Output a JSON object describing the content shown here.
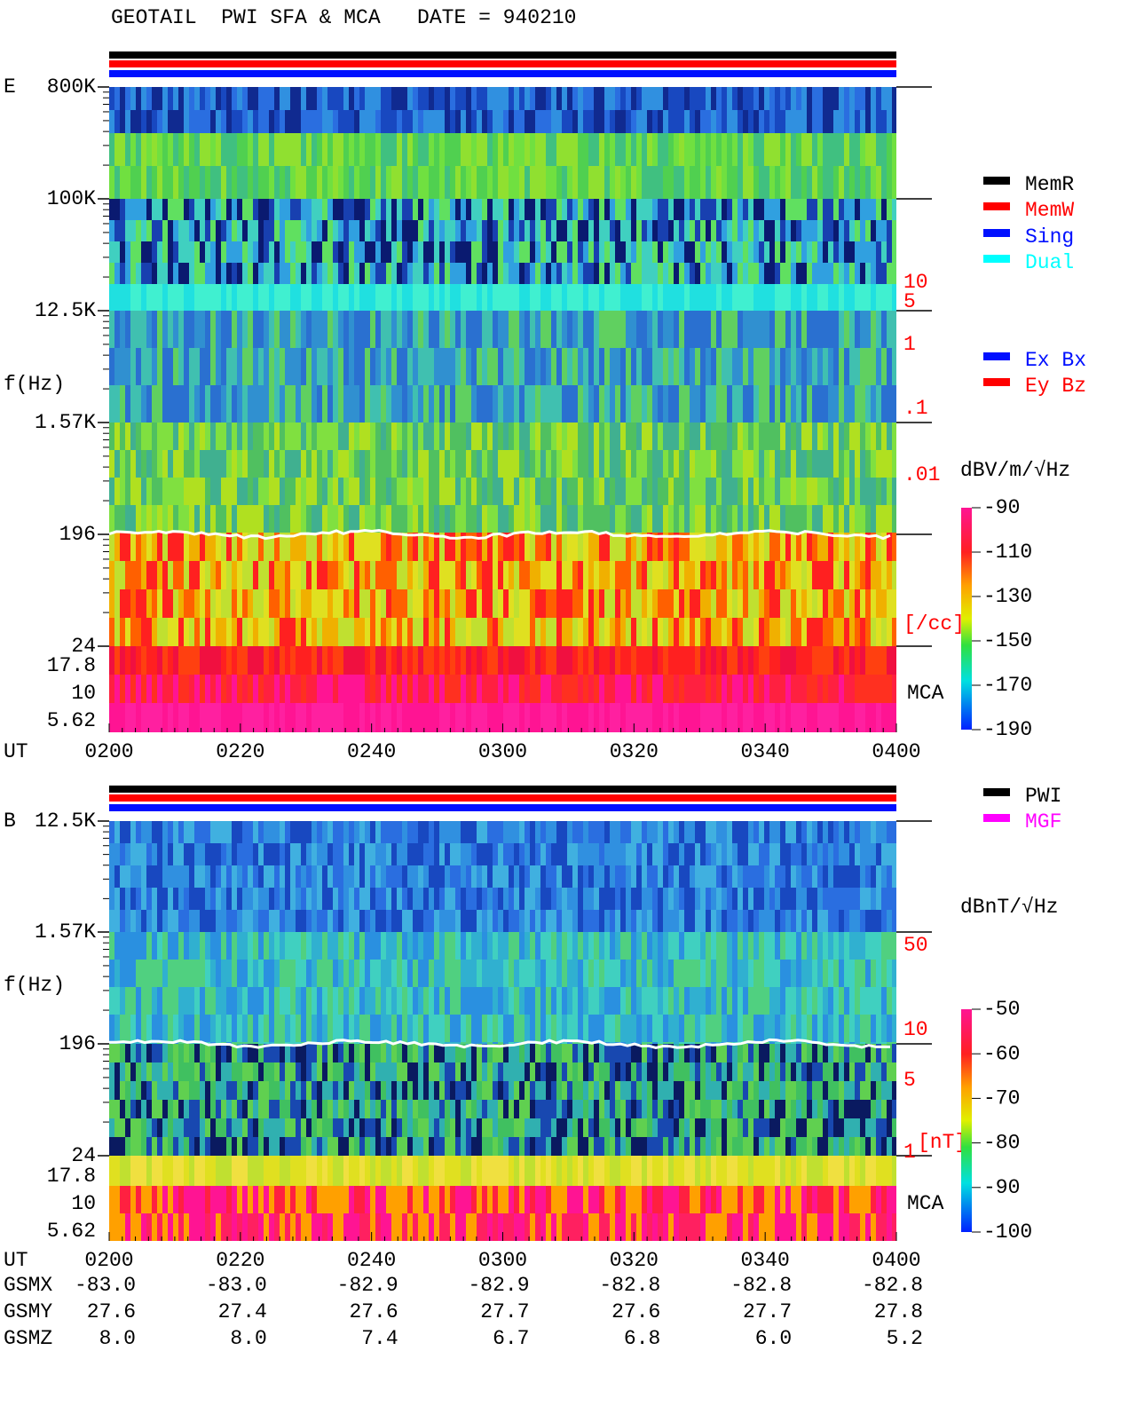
{
  "title": "GEOTAIL  PWI SFA & MCA   DATE = 940210",
  "panel_e": {
    "label": "E",
    "y_axis_label": "f(Hz)",
    "freq_labels": [
      "800K",
      "100K",
      "12.5K",
      "1.57K",
      "196",
      "24",
      "17.8",
      "10",
      "5.62"
    ],
    "density_labels": [
      "10",
      "5",
      "1",
      ".1",
      ".01",
      "[/cc]"
    ],
    "mca_label": "MCA",
    "ut_label": "UT",
    "time_labels": [
      "0200",
      "0220",
      "0240",
      "0300",
      "0320",
      "0340",
      "0400"
    ],
    "legend": [
      "MemR",
      "MemW",
      "Sing",
      "Dual",
      "Ex Bx",
      "Ey Bz"
    ],
    "unit": "dBV/m/√Hz",
    "colorbar_labels": [
      "-90",
      "-110",
      "-130",
      "-150",
      "-170",
      "-190"
    ]
  },
  "panel_b": {
    "label": "B",
    "y_axis_label": "f(Hz)",
    "freq_labels": [
      "12.5K",
      "1.57K",
      "196",
      "24",
      "17.8",
      "10",
      "5.62"
    ],
    "field_labels": [
      "50",
      "10",
      "5",
      "1",
      "[nT]"
    ],
    "mca_label": "MCA",
    "legend": [
      "PWI",
      "MGF"
    ],
    "unit": "dBnT/√Hz",
    "colorbar_labels": [
      "-50",
      "-60",
      "-70",
      "-80",
      "-90",
      "-100"
    ]
  },
  "orbit": {
    "ut_label": "UT",
    "time_labels": [
      "0200",
      "0220",
      "0240",
      "0300",
      "0320",
      "0340",
      "0400"
    ],
    "rows": [
      {
        "label": "GSMX",
        "values": [
          "-83.0",
          "-83.0",
          "-82.9",
          "-82.9",
          "-82.8",
          "-82.8",
          "-82.8"
        ]
      },
      {
        "label": "GSMY",
        "values": [
          "27.6",
          "27.4",
          "27.6",
          "27.7",
          "27.6",
          "27.7",
          "27.8"
        ]
      },
      {
        "label": "GSMZ",
        "values": [
          "8.0",
          "8.0",
          "7.4",
          "6.7",
          "6.8",
          "6.0",
          "5.2"
        ]
      }
    ]
  }
}
